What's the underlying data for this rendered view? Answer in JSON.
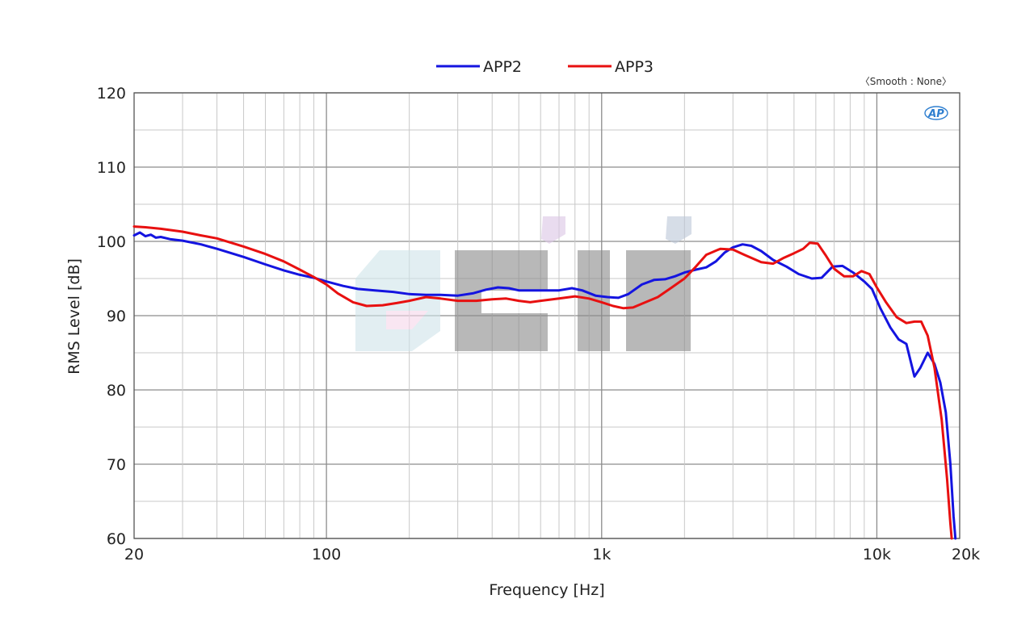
{
  "chart_data": {
    "type": "line",
    "xscale": "log",
    "xlabel": "Frequency [Hz]",
    "ylabel": "RMS Level [dB]",
    "xlim": [
      20,
      20000
    ],
    "ylim": [
      60,
      120
    ],
    "grid": true,
    "legend_position": "top-center",
    "annotation": "〈Smooth : None〉",
    "logo_text": "AP",
    "watermark": "eiiqi",
    "x_ticks": [
      {
        "value": 20,
        "label": "20"
      },
      {
        "value": 100,
        "label": "100"
      },
      {
        "value": 1000,
        "label": "1k"
      },
      {
        "value": 10000,
        "label": "10k"
      },
      {
        "value": 20000,
        "label": "20k"
      }
    ],
    "y_ticks": [
      {
        "value": 60,
        "label": "60"
      },
      {
        "value": 70,
        "label": "70"
      },
      {
        "value": 80,
        "label": "80"
      },
      {
        "value": 90,
        "label": "90"
      },
      {
        "value": 100,
        "label": "100"
      },
      {
        "value": 110,
        "label": "110"
      },
      {
        "value": 120,
        "label": "120"
      }
    ],
    "series": [
      {
        "name": "APP2",
        "color": "#1414e0",
        "points": [
          [
            20,
            100.8
          ],
          [
            21,
            101.2
          ],
          [
            22,
            100.7
          ],
          [
            23,
            100.9
          ],
          [
            24,
            100.5
          ],
          [
            25,
            100.6
          ],
          [
            27,
            100.3
          ],
          [
            30,
            100.1
          ],
          [
            35,
            99.6
          ],
          [
            40,
            99.0
          ],
          [
            50,
            97.9
          ],
          [
            60,
            96.9
          ],
          [
            70,
            96.1
          ],
          [
            80,
            95.5
          ],
          [
            90,
            95.1
          ],
          [
            100,
            94.6
          ],
          [
            115,
            94.0
          ],
          [
            130,
            93.6
          ],
          [
            150,
            93.4
          ],
          [
            175,
            93.2
          ],
          [
            200,
            92.9
          ],
          [
            230,
            92.8
          ],
          [
            260,
            92.8
          ],
          [
            300,
            92.7
          ],
          [
            340,
            93.0
          ],
          [
            380,
            93.5
          ],
          [
            420,
            93.8
          ],
          [
            460,
            93.7
          ],
          [
            500,
            93.4
          ],
          [
            560,
            93.4
          ],
          [
            620,
            93.4
          ],
          [
            700,
            93.4
          ],
          [
            780,
            93.7
          ],
          [
            850,
            93.4
          ],
          [
            950,
            92.7
          ],
          [
            1050,
            92.5
          ],
          [
            1150,
            92.4
          ],
          [
            1250,
            92.9
          ],
          [
            1400,
            94.2
          ],
          [
            1550,
            94.8
          ],
          [
            1700,
            94.9
          ],
          [
            1850,
            95.3
          ],
          [
            2000,
            95.8
          ],
          [
            2200,
            96.2
          ],
          [
            2400,
            96.5
          ],
          [
            2600,
            97.3
          ],
          [
            2800,
            98.5
          ],
          [
            3000,
            99.2
          ],
          [
            3250,
            99.6
          ],
          [
            3500,
            99.4
          ],
          [
            3800,
            98.7
          ],
          [
            4200,
            97.5
          ],
          [
            4700,
            96.6
          ],
          [
            5200,
            95.6
          ],
          [
            5800,
            95.0
          ],
          [
            6300,
            95.1
          ],
          [
            6900,
            96.6
          ],
          [
            7500,
            96.7
          ],
          [
            8200,
            95.8
          ],
          [
            9000,
            94.6
          ],
          [
            9600,
            93.6
          ],
          [
            10300,
            91.0
          ],
          [
            11200,
            88.4
          ],
          [
            12000,
            86.8
          ],
          [
            12800,
            86.2
          ],
          [
            13700,
            81.8
          ],
          [
            14400,
            83.0
          ],
          [
            15300,
            85.0
          ],
          [
            16200,
            83.5
          ],
          [
            17000,
            81.0
          ],
          [
            17800,
            77.0
          ],
          [
            18500,
            70.0
          ],
          [
            19000,
            63.0
          ],
          [
            19300,
            60.0
          ]
        ]
      },
      {
        "name": "APP3",
        "color": "#e81010",
        "points": [
          [
            20,
            102.0
          ],
          [
            22,
            101.9
          ],
          [
            25,
            101.7
          ],
          [
            30,
            101.3
          ],
          [
            35,
            100.8
          ],
          [
            40,
            100.4
          ],
          [
            50,
            99.3
          ],
          [
            60,
            98.3
          ],
          [
            70,
            97.3
          ],
          [
            80,
            96.2
          ],
          [
            90,
            95.2
          ],
          [
            100,
            94.2
          ],
          [
            110,
            93.0
          ],
          [
            125,
            91.8
          ],
          [
            140,
            91.3
          ],
          [
            160,
            91.4
          ],
          [
            180,
            91.7
          ],
          [
            200,
            92.0
          ],
          [
            230,
            92.5
          ],
          [
            260,
            92.3
          ],
          [
            300,
            92.0
          ],
          [
            350,
            92.0
          ],
          [
            400,
            92.2
          ],
          [
            450,
            92.3
          ],
          [
            500,
            92.0
          ],
          [
            550,
            91.8
          ],
          [
            600,
            92.0
          ],
          [
            700,
            92.3
          ],
          [
            800,
            92.6
          ],
          [
            900,
            92.3
          ],
          [
            1000,
            91.8
          ],
          [
            1100,
            91.3
          ],
          [
            1200,
            91.0
          ],
          [
            1300,
            91.1
          ],
          [
            1400,
            91.6
          ],
          [
            1600,
            92.5
          ],
          [
            1800,
            93.8
          ],
          [
            2000,
            95.0
          ],
          [
            2200,
            96.6
          ],
          [
            2400,
            98.2
          ],
          [
            2700,
            99.0
          ],
          [
            3000,
            98.9
          ],
          [
            3300,
            98.2
          ],
          [
            3800,
            97.2
          ],
          [
            4200,
            97.0
          ],
          [
            4600,
            97.8
          ],
          [
            5000,
            98.4
          ],
          [
            5400,
            99.0
          ],
          [
            5700,
            99.8
          ],
          [
            6100,
            99.7
          ],
          [
            6500,
            98.2
          ],
          [
            7000,
            96.3
          ],
          [
            7600,
            95.3
          ],
          [
            8200,
            95.3
          ],
          [
            8800,
            96.0
          ],
          [
            9400,
            95.6
          ],
          [
            10000,
            93.8
          ],
          [
            10800,
            91.8
          ],
          [
            11800,
            89.8
          ],
          [
            12800,
            89.0
          ],
          [
            13700,
            89.2
          ],
          [
            14500,
            89.2
          ],
          [
            15300,
            87.3
          ],
          [
            16200,
            83.0
          ],
          [
            17200,
            76.0
          ],
          [
            18000,
            68.0
          ],
          [
            18500,
            62.0
          ],
          [
            18700,
            60.0
          ]
        ]
      }
    ]
  }
}
